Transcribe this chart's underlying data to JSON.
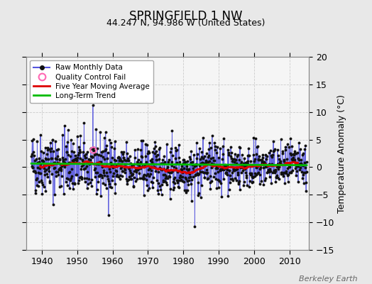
{
  "title": "SPRINGFIELD 1 NW",
  "subtitle": "44.247 N, 94.986 W (United States)",
  "ylabel_right": "Temperature Anomaly (°C)",
  "watermark": "Berkeley Earth",
  "ylim": [
    -15,
    20
  ],
  "xlim": [
    1935.5,
    2015.5
  ],
  "yticks": [
    -15,
    -10,
    -5,
    0,
    5,
    10,
    15,
    20
  ],
  "xticks": [
    1940,
    1950,
    1960,
    1970,
    1980,
    1990,
    2000,
    2010
  ],
  "fig_bg_color": "#e8e8e8",
  "plot_bg_color": "#f5f5f5",
  "raw_line_color": "#5555dd",
  "raw_dot_color": "#111111",
  "moving_avg_color": "#dd0000",
  "trend_color": "#00bb00",
  "qc_fail_color": "#ff69b4",
  "legend_items": [
    "Raw Monthly Data",
    "Quality Control Fail",
    "Five Year Moving Average",
    "Long-Term Trend"
  ],
  "seed": 42,
  "start_year": 1937,
  "n_months": 936,
  "qc_fail_year": 1954.5,
  "qc_fail_value": 3.2
}
